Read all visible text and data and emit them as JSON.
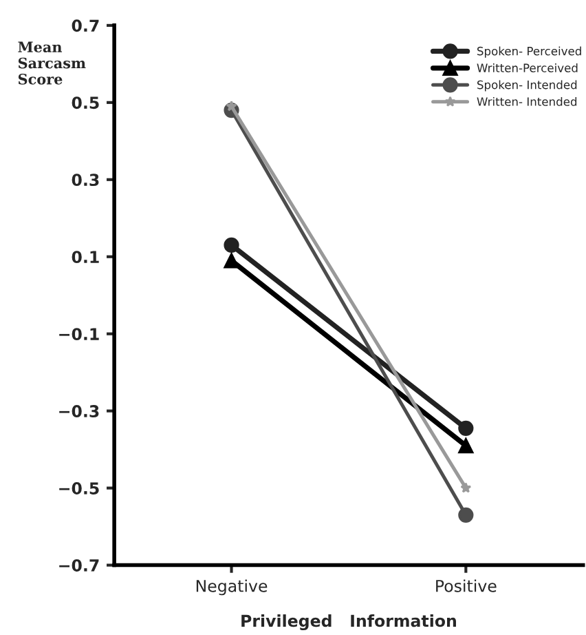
{
  "chart_data": {
    "type": "line",
    "xlabel": "Privileged   Information",
    "ylabel": "Mean\nSarcasm\nScore",
    "categories": [
      "Negative",
      "Positive"
    ],
    "series": [
      {
        "name": "Spoken- Perceived",
        "color": "#222222",
        "marker": "circle",
        "values": [
          0.13,
          -0.345
        ]
      },
      {
        "name": "Written-Perceived",
        "color": "#000000",
        "marker": "triangle",
        "values": [
          0.09,
          -0.39
        ]
      },
      {
        "name": "Spoken- Intended",
        "color": "#4d4d4d",
        "marker": "circle",
        "values": [
          0.48,
          -0.57
        ]
      },
      {
        "name": "Written- Intended",
        "color": "#999999",
        "marker": "star",
        "values": [
          0.49,
          -0.5
        ]
      }
    ],
    "ylim": [
      -0.7,
      0.7
    ],
    "yticks": [
      0.7,
      0.5,
      0.3,
      0.1,
      -0.1,
      -0.3,
      -0.5,
      -0.7
    ],
    "legend": "top right",
    "grid": false,
    "line_style": "solid"
  }
}
